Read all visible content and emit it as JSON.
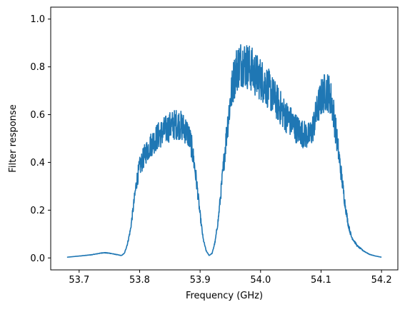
{
  "chart_data": {
    "type": "line",
    "title": "",
    "xlabel": "Frequency (GHz)",
    "ylabel": "Filter response",
    "xlim": [
      53.653,
      54.227
    ],
    "ylim": [
      -0.05,
      1.05
    ],
    "xticks": [
      53.7,
      53.8,
      53.9,
      54.0,
      54.1,
      54.2
    ],
    "xtick_labels": [
      "53.7",
      "53.8",
      "53.9",
      "54.0",
      "54.1",
      "54.2"
    ],
    "yticks": [
      0.0,
      0.2,
      0.4,
      0.6,
      0.8,
      1.0
    ],
    "ytick_labels": [
      "0.0",
      "0.2",
      "0.4",
      "0.6",
      "0.8",
      "1.0"
    ],
    "grid": false,
    "legend": "none",
    "series": [
      {
        "color": "#1f77b4",
        "noisy": true,
        "x": [
          53.68,
          53.7,
          53.72,
          53.74,
          53.75,
          53.76,
          53.77,
          53.775,
          53.78,
          53.785,
          53.79,
          53.795,
          53.8,
          53.81,
          53.82,
          53.83,
          53.84,
          53.85,
          53.86,
          53.865,
          53.87,
          53.875,
          53.88,
          53.885,
          53.89,
          53.895,
          53.9,
          53.905,
          53.91,
          53.915,
          53.92,
          53.925,
          53.93,
          53.935,
          53.94,
          53.945,
          53.95,
          53.955,
          53.96,
          53.965,
          53.97,
          53.975,
          53.98,
          53.985,
          53.99,
          54.0,
          54.01,
          54.02,
          54.03,
          54.04,
          54.05,
          54.06,
          54.07,
          54.08,
          54.085,
          54.09,
          54.095,
          54.1,
          54.105,
          54.11,
          54.115,
          54.12,
          54.125,
          54.13,
          54.135,
          54.14,
          54.145,
          54.15,
          54.16,
          54.17,
          54.18,
          54.19,
          54.2
        ],
        "y": [
          0.003,
          0.008,
          0.013,
          0.022,
          0.02,
          0.015,
          0.01,
          0.02,
          0.06,
          0.12,
          0.22,
          0.32,
          0.38,
          0.44,
          0.48,
          0.51,
          0.53,
          0.55,
          0.56,
          0.56,
          0.55,
          0.54,
          0.52,
          0.48,
          0.4,
          0.3,
          0.18,
          0.08,
          0.03,
          0.01,
          0.02,
          0.07,
          0.16,
          0.29,
          0.42,
          0.55,
          0.66,
          0.74,
          0.79,
          0.81,
          0.82,
          0.81,
          0.8,
          0.79,
          0.77,
          0.75,
          0.72,
          0.68,
          0.64,
          0.6,
          0.57,
          0.54,
          0.52,
          0.51,
          0.53,
          0.58,
          0.63,
          0.67,
          0.69,
          0.7,
          0.68,
          0.62,
          0.52,
          0.42,
          0.32,
          0.22,
          0.14,
          0.09,
          0.05,
          0.03,
          0.015,
          0.008,
          0.003
        ]
      }
    ]
  }
}
